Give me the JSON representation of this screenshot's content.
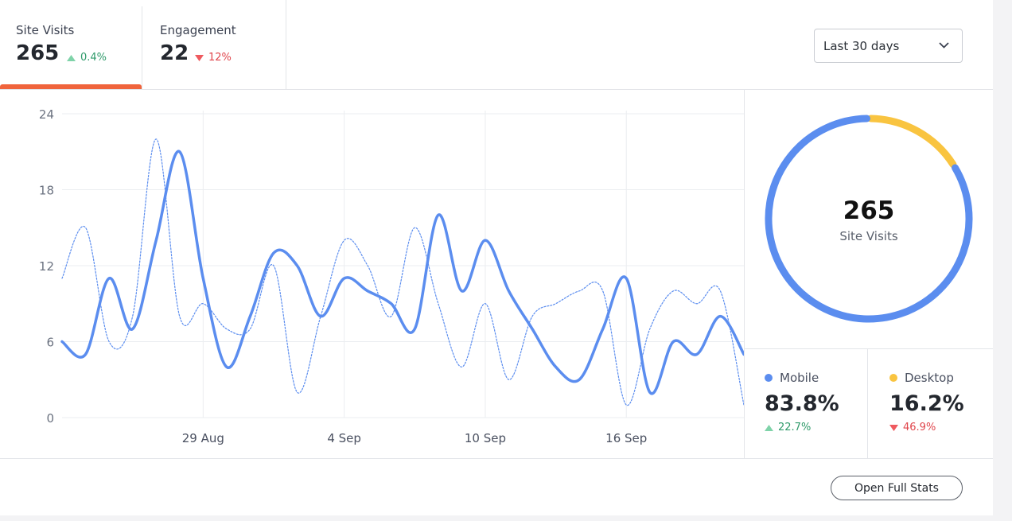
{
  "tabs": [
    {
      "label": "Site Visits",
      "value": "265",
      "change": "0.4%"
    },
    {
      "label": "Engagement",
      "value": "22",
      "change": "12%"
    }
  ],
  "filter": "Last 30 days",
  "chart_data": [
    {
      "type": "line",
      "categories": [
        null,
        null,
        null,
        null,
        null,
        null,
        "29 Aug",
        null,
        null,
        null,
        null,
        null,
        "4 Sep",
        null,
        null,
        null,
        null,
        null,
        "10 Sep",
        null,
        null,
        null,
        null,
        null,
        "16 Sep",
        null,
        null,
        null,
        null,
        null
      ],
      "series": [
        {
          "color": "#5b8def",
          "style": "solid",
          "values": [
            6,
            5,
            11,
            7,
            14,
            21,
            11,
            4,
            8,
            13,
            12,
            8,
            11,
            10,
            9,
            7,
            16,
            10,
            14,
            10,
            7,
            4,
            3,
            7,
            11,
            2,
            6,
            5,
            8,
            5
          ]
        },
        {
          "color": "#5b8def",
          "style": "dotted",
          "values": [
            11,
            15,
            6,
            8,
            22,
            8,
            9,
            7,
            7,
            12,
            2,
            8,
            14,
            12,
            8,
            15,
            9,
            4,
            9,
            3,
            8,
            9,
            10,
            10,
            1,
            7,
            10,
            9,
            10,
            1
          ]
        }
      ],
      "ylim": [
        0,
        24
      ],
      "yticks": [
        0,
        6,
        12,
        18,
        24
      ],
      "grid": true
    },
    {
      "type": "pie",
      "center_value": "265",
      "center_label": "Site Visits",
      "categories": [
        "Mobile",
        "Desktop"
      ],
      "values": [
        83.8,
        16.2
      ],
      "value_labels": [
        "83.8%",
        "16.2%"
      ],
      "colors": [
        "#5b8def",
        "#f9c440"
      ],
      "changes": [
        "22.7%",
        "46.9%"
      ]
    }
  ],
  "button": "Open Full Stats"
}
